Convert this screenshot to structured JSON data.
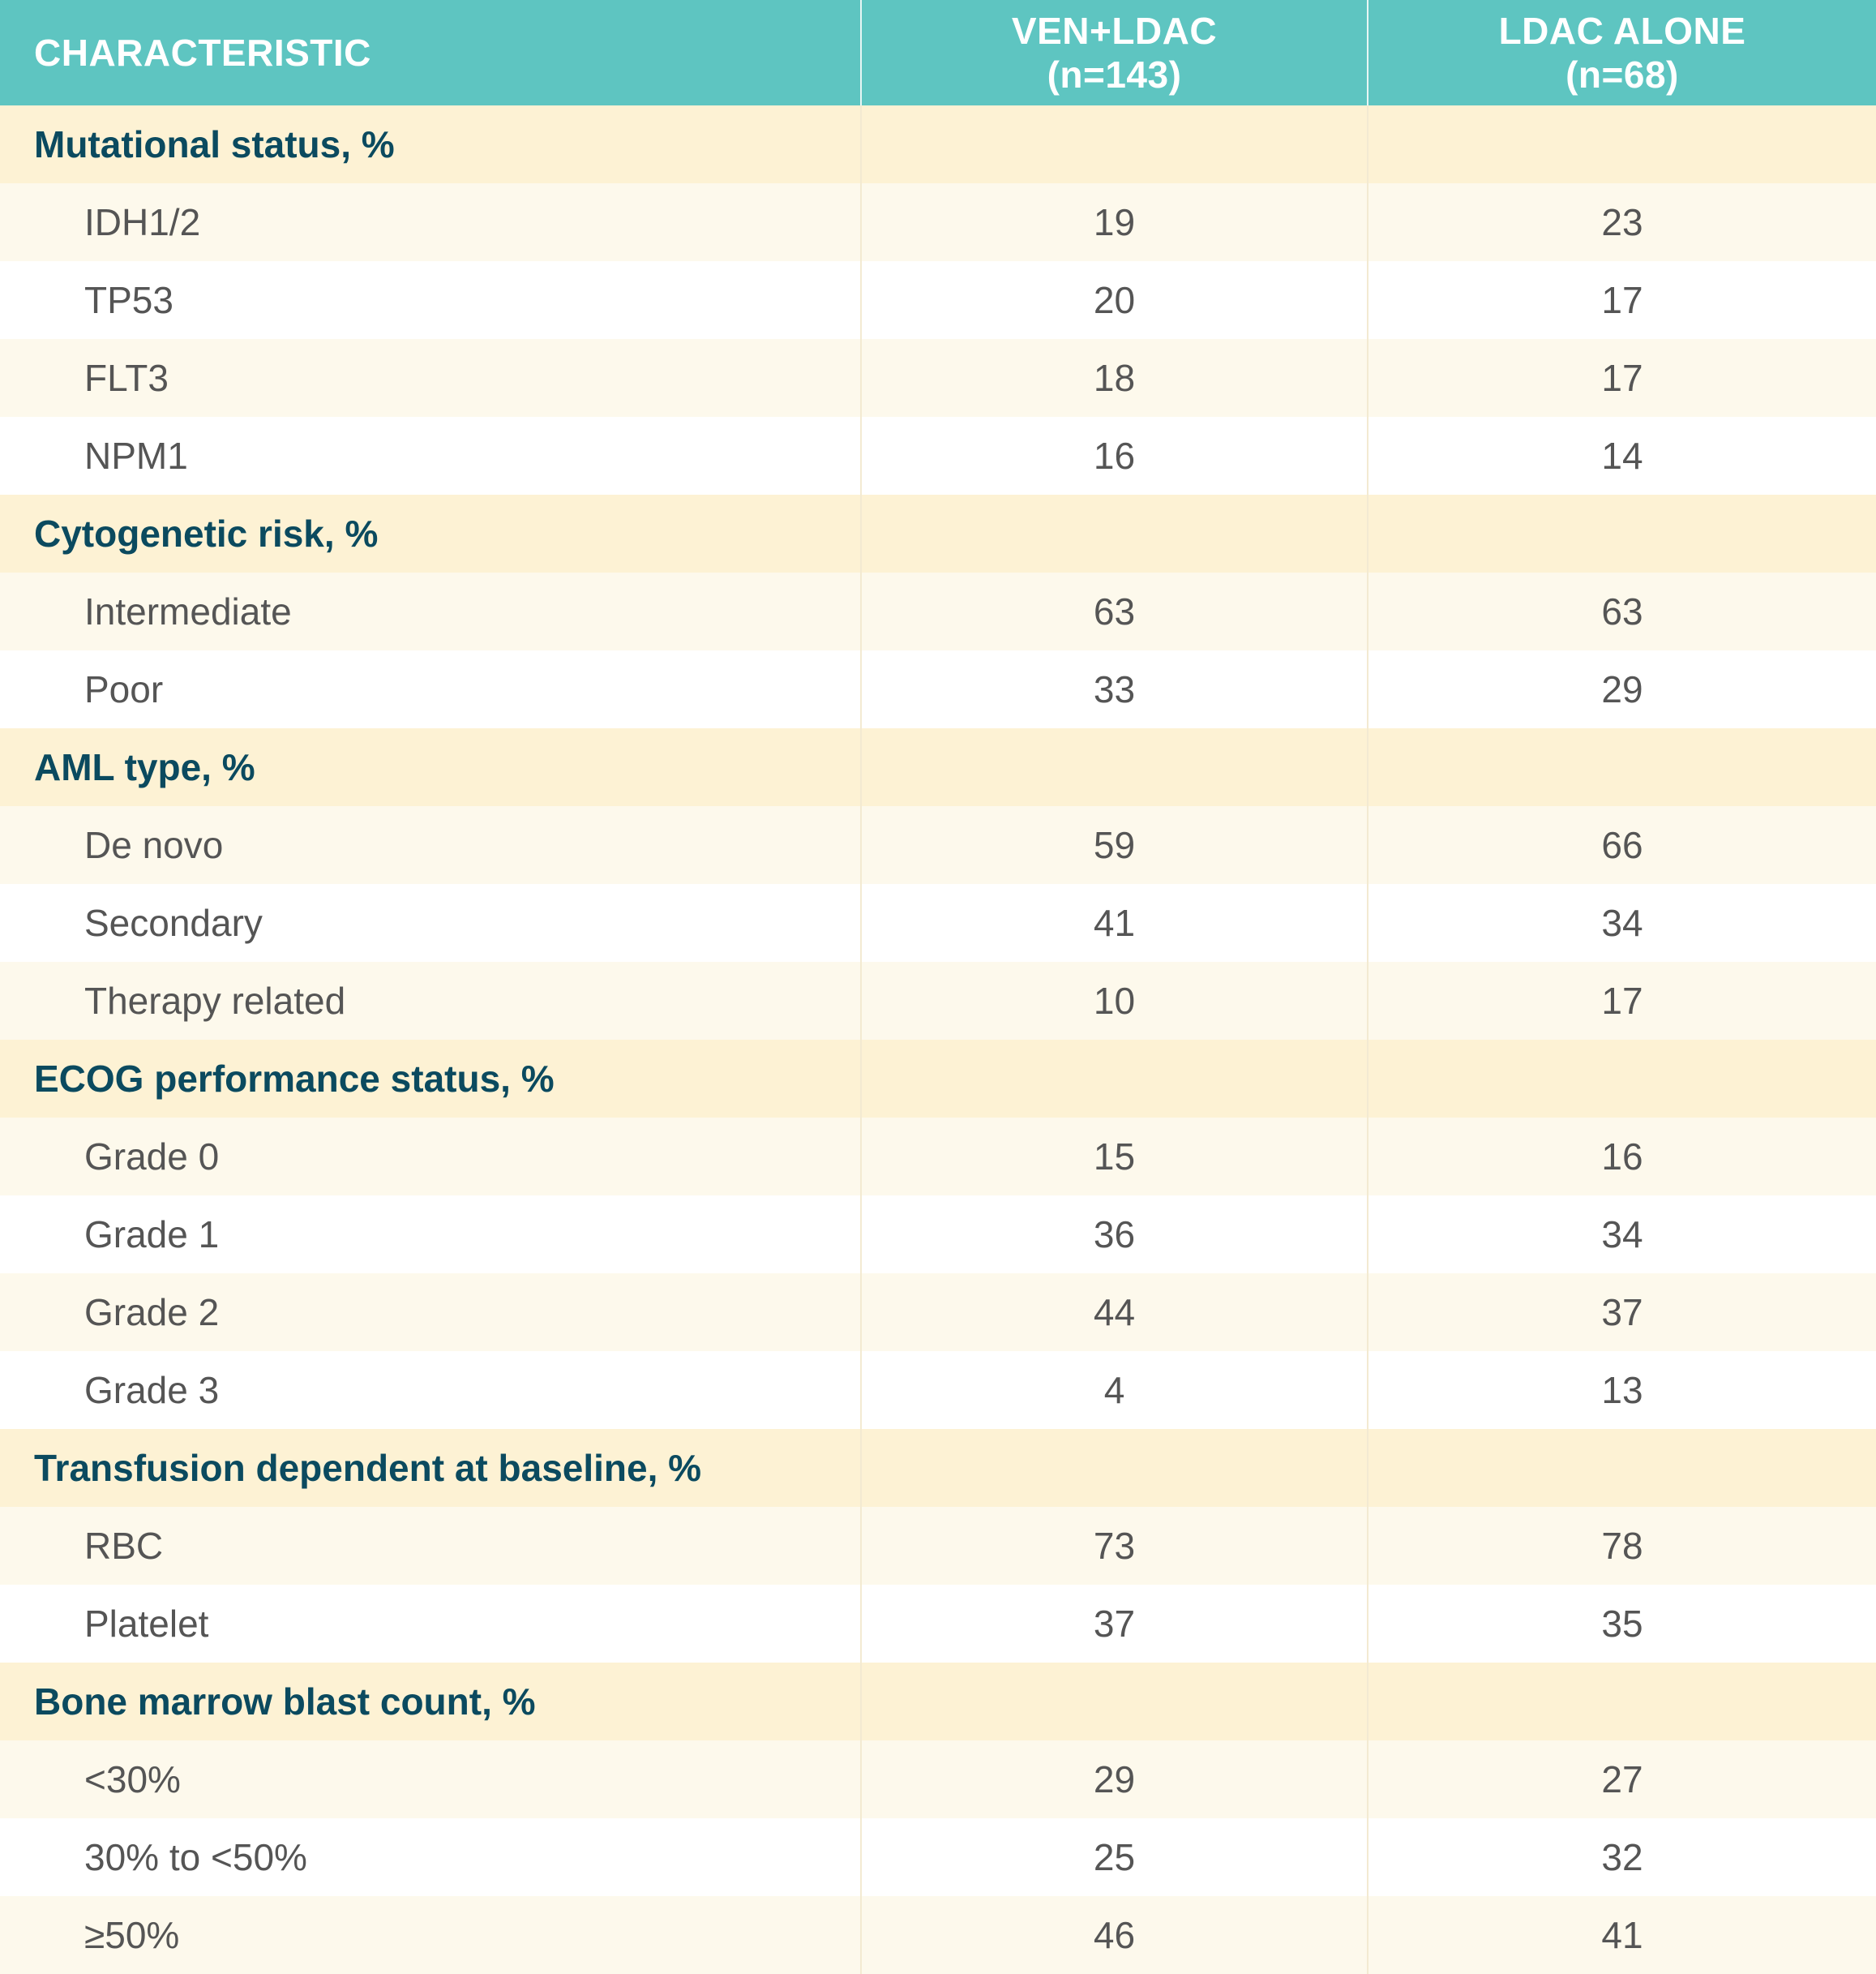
{
  "colors": {
    "header_bg": "#5ec5c1",
    "section_bg": "#fdf2d4",
    "row_light_bg": "#fdf9ec",
    "row_white_bg": "#ffffff",
    "section_text": "#0b4a5f",
    "body_text": "#555555"
  },
  "header": {
    "characteristic": "CHARACTERISTIC",
    "col1_line1": "VEN+LDAC",
    "col1_line2": "(n=143)",
    "col2_line1": "LDAC ALONE",
    "col2_line2": "(n=68)"
  },
  "sections": [
    {
      "title": "Mutational status, %",
      "rows": [
        {
          "label": "IDH1/2",
          "ven_ldac": "19",
          "ldac_alone": "23"
        },
        {
          "label": "TP53",
          "ven_ldac": "20",
          "ldac_alone": "17"
        },
        {
          "label": "FLT3",
          "ven_ldac": "18",
          "ldac_alone": "17"
        },
        {
          "label": "NPM1",
          "ven_ldac": "16",
          "ldac_alone": "14"
        }
      ]
    },
    {
      "title": "Cytogenetic risk, %",
      "rows": [
        {
          "label": "Intermediate",
          "ven_ldac": "63",
          "ldac_alone": "63"
        },
        {
          "label": "Poor",
          "ven_ldac": "33",
          "ldac_alone": "29"
        }
      ]
    },
    {
      "title": "AML type, %",
      "rows": [
        {
          "label": "De novo",
          "ven_ldac": "59",
          "ldac_alone": "66"
        },
        {
          "label": "Secondary",
          "ven_ldac": "41",
          "ldac_alone": "34"
        },
        {
          "label": "Therapy related",
          "ven_ldac": "10",
          "ldac_alone": "17"
        }
      ]
    },
    {
      "title": "ECOG performance status, %",
      "rows": [
        {
          "label": "Grade 0",
          "ven_ldac": "15",
          "ldac_alone": "16"
        },
        {
          "label": "Grade 1",
          "ven_ldac": "36",
          "ldac_alone": "34"
        },
        {
          "label": "Grade 2",
          "ven_ldac": "44",
          "ldac_alone": "37"
        },
        {
          "label": "Grade 3",
          "ven_ldac": "4",
          "ldac_alone": "13"
        }
      ]
    },
    {
      "title": "Transfusion dependent at baseline, %",
      "rows": [
        {
          "label": "RBC",
          "ven_ldac": "73",
          "ldac_alone": "78"
        },
        {
          "label": "Platelet",
          "ven_ldac": "37",
          "ldac_alone": "35"
        }
      ]
    },
    {
      "title": "Bone marrow blast count, %",
      "rows": [
        {
          "label": "<30%",
          "ven_ldac": "29",
          "ldac_alone": "27"
        },
        {
          "label": "30% to <50%",
          "ven_ldac": "25",
          "ldac_alone": "32"
        },
        {
          "label": "≥50%",
          "ven_ldac": "46",
          "ldac_alone": "41"
        }
      ]
    }
  ]
}
